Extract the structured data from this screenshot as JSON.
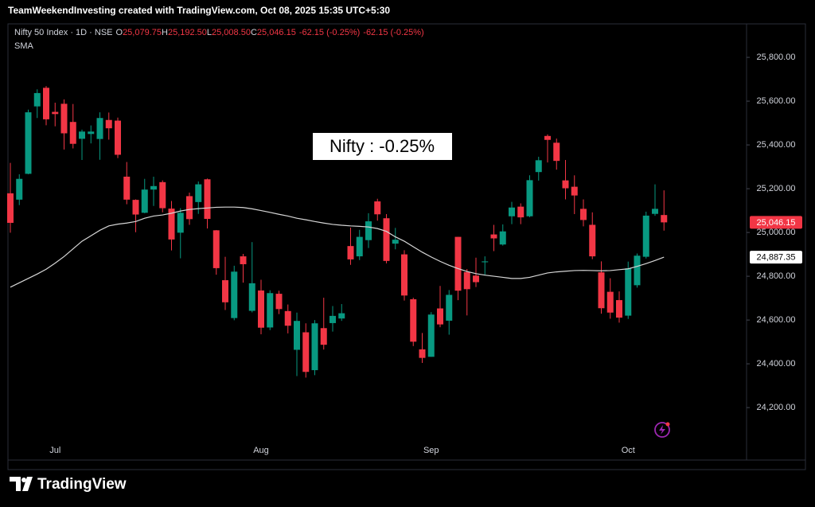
{
  "chart_data": {
    "type": "candlestick",
    "title": "TeamWeekendInvesting created with TradingView.com, Oct 08, 2025 15:35 UTC+5:30",
    "legend_items": [
      {
        "key": "O",
        "value": "25,079.75"
      },
      {
        "key": "H",
        "value": "25,192.50"
      },
      {
        "key": "L",
        "value": "25,008.50"
      },
      {
        "key": "C",
        "value": "25,046.15"
      }
    ],
    "changes": [
      "-62.15 (-0.25%)",
      "-62.15 (-0.25%)"
    ],
    "annotation": "Nifty : -0.25%",
    "brand": "TradingView",
    "categories": [
      null,
      null,
      null,
      null,
      null,
      "Jul",
      null,
      null,
      null,
      null,
      null,
      null,
      null,
      null,
      null,
      null,
      null,
      null,
      null,
      null,
      null,
      null,
      null,
      null,
      null,
      null,
      null,
      null,
      "Aug",
      null,
      null,
      null,
      null,
      null,
      null,
      null,
      null,
      null,
      null,
      null,
      null,
      null,
      null,
      null,
      null,
      null,
      null,
      "Sep",
      null,
      null,
      null,
      null,
      null,
      null,
      null,
      null,
      null,
      null,
      null,
      null,
      null,
      null,
      null,
      null,
      null,
      null,
      null,
      null,
      null,
      "Oct",
      null,
      null,
      null,
      null
    ],
    "series": [
      {
        "name": "Nifty 50 Index · 1D · NSE",
        "up_color": "#089981",
        "down_color": "#f23645",
        "open": [
          25179,
          25150,
          25268,
          25576,
          25661,
          25551,
          25588,
          25505,
          25428,
          25450,
          25427,
          25514,
          25511,
          25255,
          25149,
          25090,
          25196,
          25230,
          25109,
          24999,
          25166,
          25139,
          25243,
          25010,
          24782,
          24609,
          24891,
          24642,
          24735,
          24566,
          24720,
          24641,
          24464,
          24544,
          24371,
          24563,
          24586,
          24607,
          24938,
          24891,
          24965,
          25142,
          25065,
          24949,
          24900,
          24695,
          24466,
          24432,
          24653,
          24597,
          24980,
          24819,
          24803,
          24864,
          24991,
          24945,
          25074,
          25118,
          25074,
          25276,
          25441,
          25410,
          25238,
          25209,
          25108,
          25035,
          24818,
          24729,
          24691,
          24620,
          24759,
          24889,
          25085,
          25079.75
        ],
        "high": [
          25318,
          25266,
          25561,
          25654,
          25669,
          25593,
          25608,
          25587,
          25470,
          25489,
          25549,
          25548,
          25525,
          25322,
          25151,
          25245,
          25255,
          25238,
          25144,
          25111,
          25182,
          25233,
          25246,
          25011,
          24889,
          24848,
          24902,
          24956,
          24784,
          24736,
          24734,
          24671,
          24634,
          24585,
          24600,
          24702,
          24664,
          24673,
          25022,
          25012,
          25088,
          25154,
          25084,
          25021,
          24919,
          24702,
          24541,
          24636,
          24756,
          24737,
          24980,
          24833,
          24885,
          24891,
          25035,
          25037,
          25140,
          25133,
          25261,
          25346,
          25448,
          25429,
          25331,
          25261,
          25151,
          25092,
          24868,
          24791,
          24731,
          24867,
          24904,
          25095,
          25220,
          25192.5
        ],
        "low": [
          24999,
          25125,
          25266,
          25523,
          25490,
          25485,
          25379,
          25384,
          25331,
          25407,
          25332,
          25424,
          25340,
          25129,
          25001,
          25088,
          25121,
          25092,
          24918,
          24882,
          25035,
          25085,
          25018,
          24807,
          24646,
          24599,
          24771,
          24635,
          24535,
          24554,
          24627,
          24539,
          24344,
          24337,
          24348,
          24465,
          24547,
          24596,
          24852,
          24874,
          24929,
          25054,
          24859,
          24923,
          24689,
          24481,
          24404,
          24432,
          24567,
          24533,
          24691,
          24621,
          24751,
          24804,
          24915,
          24940,
          25038,
          25038,
          25070,
          25237,
          25320,
          25287,
          25151,
          25084,
          25028,
          24878,
          24629,
          24606,
          24588,
          24605,
          24748,
          24881,
          25076,
          25008.5
        ],
        "close": [
          25044,
          25245,
          25549,
          25637,
          25517,
          25541,
          25453,
          25405,
          25461,
          25461,
          25523,
          25476,
          25355,
          25150,
          25082,
          25196,
          25212,
          25111,
          24968,
          25090,
          25061,
          25220,
          25062,
          24837,
          24681,
          24821,
          24855,
          24768,
          24565,
          24723,
          24650,
          24574,
          24596,
          24363,
          24585,
          24487,
          24619,
          24631,
          24877,
          24980,
          25051,
          25083,
          24870,
          24967,
          24712,
          24501,
          24427,
          24625,
          24580,
          24715,
          24734,
          24741,
          24773,
          24868,
          24973,
          25005,
          25114,
          25069,
          25239,
          25330,
          25423,
          25327,
          25202,
          25169,
          25057,
          24891,
          24654,
          24634,
          24611,
          24836,
          24894,
          25077,
          25108,
          25046.15
        ]
      },
      {
        "name": "SMA",
        "color": "#d6d6d6",
        "values": [
          24750,
          24770,
          24790,
          24810,
          24832,
          24860,
          24890,
          24925,
          24960,
          24985,
          25010,
          25030,
          25038,
          25043,
          25050,
          25065,
          25075,
          25080,
          25088,
          25098,
          25105,
          25109,
          25112,
          25115,
          25116,
          25116,
          25114,
          25108,
          25100,
          25092,
          25083,
          25075,
          25065,
          25058,
          25050,
          25043,
          25037,
          25033,
          25030,
          25028,
          25025,
          25018,
          25005,
          24980,
          24960,
          24935,
          24910,
          24888,
          24868,
          24850,
          24835,
          24822,
          24812,
          24805,
          24800,
          24795,
          24790,
          24790,
          24795,
          24805,
          24815,
          24820,
          24823,
          24826,
          24827,
          24826,
          24825,
          24826,
          24830,
          24834,
          24845,
          24858,
          24872,
          24887.35
        ]
      }
    ],
    "price_labels": [
      {
        "value": 25046.15,
        "label": "25,046.15",
        "color": "#f23645"
      },
      {
        "value": 24887.35,
        "label": "24,887.35",
        "color": "#ffffff"
      }
    ],
    "ylim": [
      24044,
      25953
    ],
    "yticks": [
      {
        "value": 24200,
        "label": "24,200.00"
      },
      {
        "value": 24400,
        "label": "24,400.00"
      },
      {
        "value": 24600,
        "label": "24,600.00"
      },
      {
        "value": 24800,
        "label": "24,800.00"
      },
      {
        "value": 25000,
        "label": "25,000.00"
      },
      {
        "value": 25200,
        "label": "25,200.00"
      },
      {
        "value": 25400,
        "label": "25,400.00"
      },
      {
        "value": 25600,
        "label": "25,600.00"
      },
      {
        "value": 25800,
        "label": "25,800.00"
      }
    ],
    "grid": false
  }
}
